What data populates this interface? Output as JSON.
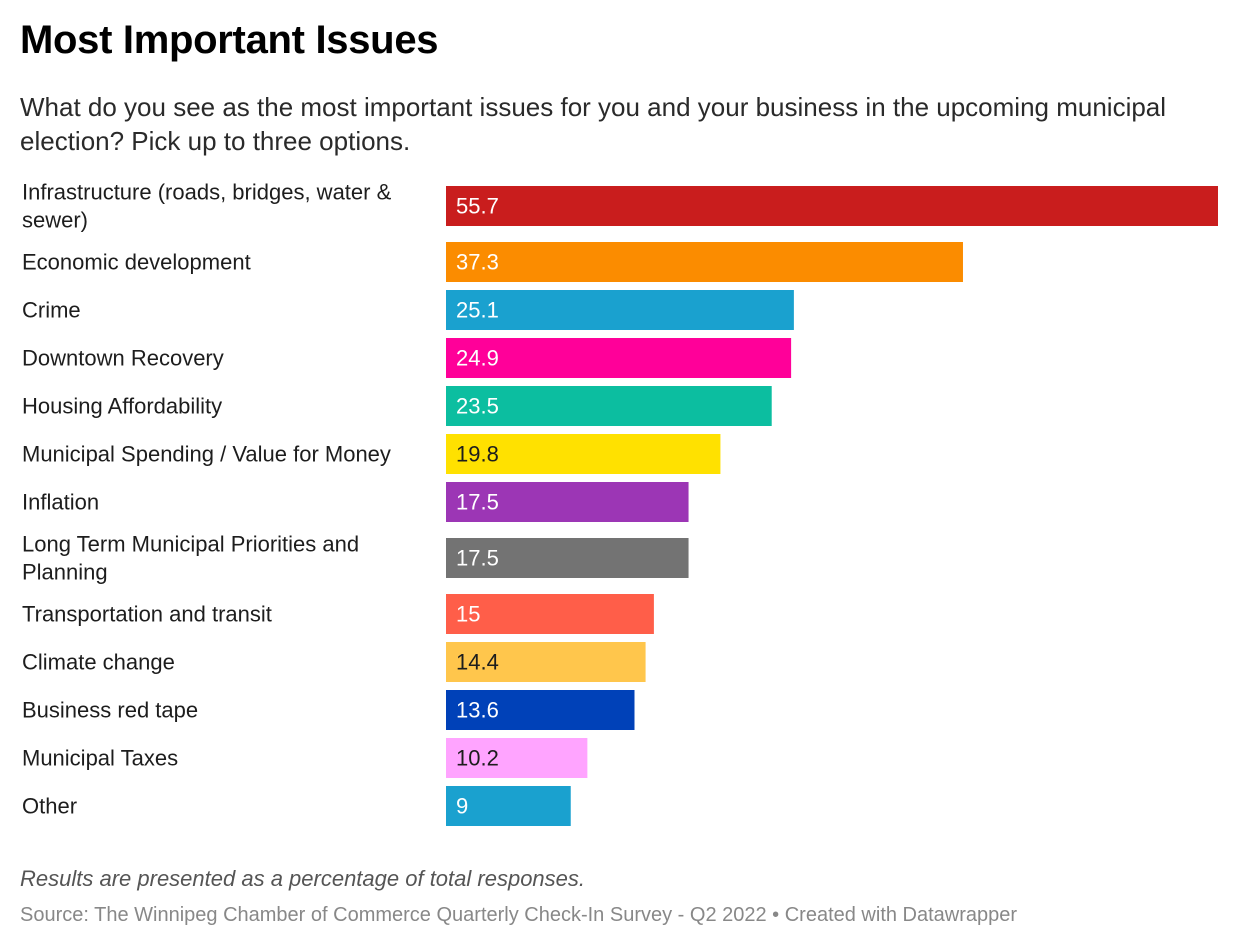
{
  "title": "Most Important Issues",
  "subtitle": "What do you see as the most important issues for you and your business in the upcoming municipal election? Pick up to three options.",
  "notes": "Results are presented as a percentage of total responses.",
  "source": "Source: The Winnipeg Chamber of Commerce Quarterly Check-In Survey - Q2 2022 • Created with Datawrapper",
  "chart_data": {
    "type": "bar",
    "orientation": "horizontal",
    "categories": [
      "Infrastructure (roads, bridges, water & sewer)",
      "Economic development",
      "Crime",
      "Downtown Recovery",
      "Housing Affordability",
      "Municipal Spending / Value for Money",
      "Inflation",
      "Long Term Municipal Priorities and Planning",
      "Transportation and transit",
      "Climate change",
      "Business red tape",
      "Municipal Taxes",
      "Other"
    ],
    "category_lines": [
      [
        "Infrastructure (roads, bridges, water &",
        "sewer)"
      ],
      [
        "Economic development"
      ],
      [
        "Crime"
      ],
      [
        "Downtown Recovery"
      ],
      [
        "Housing Affordability"
      ],
      [
        "Municipal Spending / Value for Money"
      ],
      [
        "Inflation"
      ],
      [
        "Long Term Municipal Priorities and",
        "Planning"
      ],
      [
        "Transportation and transit"
      ],
      [
        "Climate change"
      ],
      [
        "Business red tape"
      ],
      [
        "Municipal Taxes"
      ],
      [
        "Other"
      ]
    ],
    "values": [
      55.7,
      37.3,
      25.1,
      24.9,
      23.5,
      19.8,
      17.5,
      17.5,
      15,
      14.4,
      13.6,
      10.2,
      9
    ],
    "value_labels": [
      "55.7",
      "37.3",
      "25.1",
      "24.9",
      "23.5",
      "19.8",
      "17.5",
      "17.5",
      "15",
      "14.4",
      "13.6",
      "10.2",
      "9"
    ],
    "colors": [
      "#c91d1d",
      "#fb8c00",
      "#1aa1cf",
      "#ff0099",
      "#0cbea0",
      "#ffe100",
      "#9c36b5",
      "#737373",
      "#ff5e49",
      "#ffc64c",
      "#0041b8",
      "#ffa4ff",
      "#1aa1cf"
    ],
    "label_colors": [
      "#ffffff",
      "#ffffff",
      "#ffffff",
      "#ffffff",
      "#ffffff",
      "#1d1d1d",
      "#ffffff",
      "#ffffff",
      "#ffffff",
      "#1d1d1d",
      "#ffffff",
      "#1d1d1d",
      "#ffffff"
    ],
    "xlim": [
      0,
      55.7
    ],
    "grid": false,
    "legend": "none"
  }
}
